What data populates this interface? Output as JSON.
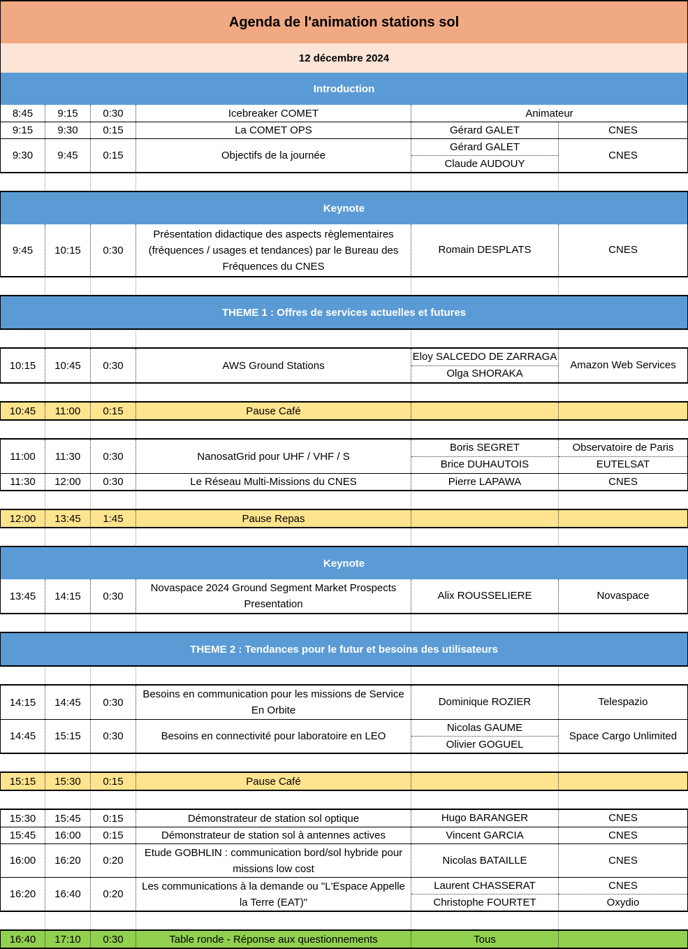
{
  "header": {
    "title": "Agenda de l'animation stations sol",
    "date": "12 décembre 2024"
  },
  "colors": {
    "header_orange": "#F1A983",
    "date_peach": "#FCE4D6",
    "section_blue": "#5B9BD5",
    "break_yellow": "#FFE48F",
    "roundtable_green": "#92D050",
    "border_black": "#000000",
    "grid_grey": "#C8C8C8"
  },
  "sections": {
    "intro": "Introduction",
    "keynote1": "Keynote",
    "theme1": "THEME 1 : Offres de services actuelles et futures",
    "keynote2": "Keynote",
    "theme2": "THEME 2 : Tendances pour le futur et besoins des utilisateurs"
  },
  "rows": {
    "icebreaker": {
      "start": "8:45",
      "end": "9:15",
      "dur": "0:30",
      "title": "Icebreaker COMET",
      "merged": "Animateur"
    },
    "comet_ops": {
      "start": "9:15",
      "end": "9:30",
      "dur": "0:15",
      "title": "La COMET OPS",
      "speakers": [
        "Gérard GALET"
      ],
      "orgs": [
        "CNES"
      ]
    },
    "objectifs": {
      "start": "9:30",
      "end": "9:45",
      "dur": "0:15",
      "title": "Objectifs de la journée",
      "speakers": [
        "Gérard GALET",
        "Claude AUDOUY"
      ],
      "orgs": [
        "CNES"
      ]
    },
    "reglementaire": {
      "start": "9:45",
      "end": "10:15",
      "dur": "0:30",
      "title": "Présentation didactique des aspects règlementaires (fréquences / usages et tendances) par le Bureau des Fréquences du CNES",
      "speakers": [
        "Romain DESPLATS"
      ],
      "orgs": [
        "CNES"
      ]
    },
    "aws": {
      "start": "10:15",
      "end": "10:45",
      "dur": "0:30",
      "title": "AWS Ground Stations",
      "speakers": [
        "Eloy SALCEDO DE ZARRAGA",
        "Olga SHORAKA"
      ],
      "orgs": [
        "Amazon Web Services"
      ]
    },
    "pause1": {
      "start": "10:45",
      "end": "11:00",
      "dur": "0:15",
      "title": "Pause Café"
    },
    "nanosatgrid": {
      "start": "11:00",
      "end": "11:30",
      "dur": "0:30",
      "title": "NanosatGrid pour UHF / VHF / S",
      "speakers": [
        "Boris SEGRET",
        "Brice DUHAUTOIS"
      ],
      "orgs": [
        "Observatoire de Paris",
        "EUTELSAT"
      ]
    },
    "reseau": {
      "start": "11:30",
      "end": "12:00",
      "dur": "0:30",
      "title": "Le Réseau Multi-Missions du CNES",
      "speakers": [
        "Pierre LAPAWA"
      ],
      "orgs": [
        "CNES"
      ]
    },
    "pause_repas": {
      "start": "12:00",
      "end": "13:45",
      "dur": "1:45",
      "title": "Pause Repas"
    },
    "novaspace": {
      "start": "13:45",
      "end": "14:15",
      "dur": "0:30",
      "title": "Novaspace 2024 Ground Segment Market Prospects Presentation",
      "speakers": [
        "Alix ROUSSELIERE"
      ],
      "orgs": [
        "Novaspace"
      ]
    },
    "sei": {
      "start": "14:15",
      "end": "14:45",
      "dur": "0:30",
      "title": "Besoins en communication pour les missions de Service En Orbite",
      "speakers": [
        "Dominique ROZIER"
      ],
      "orgs": [
        "Telespazio"
      ]
    },
    "leo": {
      "start": "14:45",
      "end": "15:15",
      "dur": "0:30",
      "title": "Besoins en connectivité pour laboratoire en LEO",
      "speakers": [
        "Nicolas GAUME",
        "Olivier GOGUEL"
      ],
      "orgs": [
        "Space Cargo Unlimited"
      ]
    },
    "pause2": {
      "start": "15:15",
      "end": "15:30",
      "dur": "0:15",
      "title": "Pause Café"
    },
    "optique": {
      "start": "15:30",
      "end": "15:45",
      "dur": "0:15",
      "title": "Démonstrateur de station sol optique",
      "speakers": [
        "Hugo BARANGER"
      ],
      "orgs": [
        "CNES"
      ]
    },
    "antennes": {
      "start": "15:45",
      "end": "16:00",
      "dur": "0:15",
      "title": "Démonstrateur de station sol à antennes actives",
      "speakers": [
        "Vincent GARCIA"
      ],
      "orgs": [
        "CNES"
      ]
    },
    "gobhlin": {
      "start": "16:00",
      "end": "16:20",
      "dur": "0:20",
      "title": "Etude GOBHLIN : communication bord/sol hybride pour missions low cost",
      "speakers": [
        "Nicolas BATAILLE"
      ],
      "orgs": [
        "CNES"
      ]
    },
    "eat": {
      "start": "16:20",
      "end": "16:40",
      "dur": "0:20",
      "title": "Les communications à la demande ou \"L'Espace Appelle la Terre (EAT)\"",
      "speakers": [
        "Laurent CHASSERAT",
        "Christophe FOURTET"
      ],
      "orgs": [
        "CNES",
        "Oxydio"
      ]
    },
    "table_ronde": {
      "start": "16:40",
      "end": "17:10",
      "dur": "0:30",
      "title": "Table ronde - Réponse aux questionnements",
      "speakers": [
        "Tous"
      ]
    }
  }
}
